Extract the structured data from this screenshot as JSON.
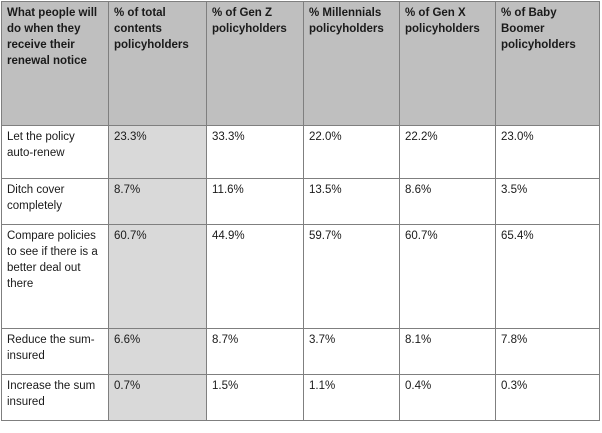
{
  "table": {
    "headers": [
      "What people will do when they receive their renewal notice",
      "% of total contents policyholders",
      "% of Gen Z policyholders",
      "% Millennials policyholders",
      "% of Gen X policyholders",
      "% of Baby Boomer policyholders"
    ],
    "rows": [
      [
        "Let the policy auto-renew",
        "23.3%",
        "33.3%",
        "22.0%",
        "22.2%",
        "23.0%"
      ],
      [
        "Ditch cover completely",
        "8.7%",
        "11.6%",
        "13.5%",
        "8.6%",
        "3.5%"
      ],
      [
        "Compare policies to see if there is a better deal out there",
        "60.7%",
        "44.9%",
        "59.7%",
        "60.7%",
        "65.4%"
      ],
      [
        "Reduce the sum-insured",
        "6.6%",
        "8.7%",
        "3.7%",
        "8.1%",
        "7.8%"
      ],
      [
        "Increase the sum insured",
        "0.7%",
        "1.5%",
        "1.1%",
        "0.4%",
        "0.3%"
      ]
    ]
  },
  "colors": {
    "header_bg": "#bfbfbf",
    "highlight_column_bg": "#d9d9d9",
    "border": "#7f7f7f"
  }
}
